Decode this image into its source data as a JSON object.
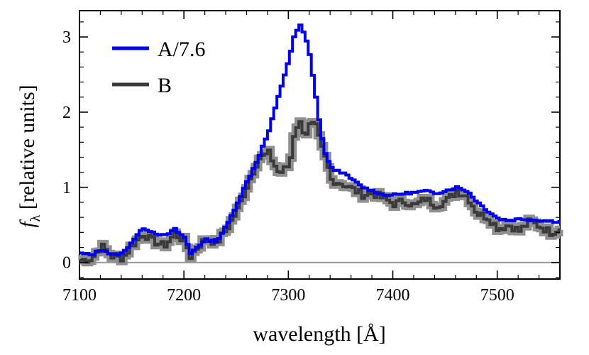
{
  "chart_data": {
    "type": "line",
    "xlabel": "wavelength [Å]",
    "ylabel_italic": "f",
    "ylabel_subscript": "λ",
    "ylabel_rest": " [relative units]",
    "xlim": [
      7100,
      7560
    ],
    "ylim": [
      -0.22,
      3.35
    ],
    "xticks": [
      7100,
      7200,
      7300,
      7400,
      7500
    ],
    "xtick_labels": [
      "7100",
      "7200",
      "7300",
      "7400",
      "7500"
    ],
    "yticks": [
      0,
      1,
      2,
      3
    ],
    "ytick_labels": [
      "0",
      "1",
      "2",
      "3"
    ],
    "zero_line": 0,
    "legend": {
      "position": "top-left",
      "entries": [
        "A/7.6",
        "B"
      ]
    },
    "series": [
      {
        "name": "A/7.6",
        "color": "#0000ee",
        "step": true,
        "points": [
          [
            7100,
            0.12
          ],
          [
            7110,
            0.1
          ],
          [
            7120,
            0.18
          ],
          [
            7130,
            0.1
          ],
          [
            7140,
            0.12
          ],
          [
            7150,
            0.3
          ],
          [
            7160,
            0.46
          ],
          [
            7170,
            0.4
          ],
          [
            7180,
            0.35
          ],
          [
            7190,
            0.44
          ],
          [
            7200,
            0.32
          ],
          [
            7205,
            0.12
          ],
          [
            7210,
            0.2
          ],
          [
            7220,
            0.3
          ],
          [
            7230,
            0.28
          ],
          [
            7240,
            0.5
          ],
          [
            7250,
            0.8
          ],
          [
            7260,
            1.1
          ],
          [
            7270,
            1.4
          ],
          [
            7280,
            1.75
          ],
          [
            7290,
            2.25
          ],
          [
            7300,
            2.75
          ],
          [
            7305,
            3.05
          ],
          [
            7310,
            3.15
          ],
          [
            7315,
            3.0
          ],
          [
            7320,
            2.7
          ],
          [
            7325,
            2.2
          ],
          [
            7330,
            1.7
          ],
          [
            7335,
            1.4
          ],
          [
            7340,
            1.25
          ],
          [
            7350,
            1.2
          ],
          [
            7360,
            1.1
          ],
          [
            7370,
            1.0
          ],
          [
            7380,
            0.95
          ],
          [
            7390,
            0.9
          ],
          [
            7400,
            0.9
          ],
          [
            7410,
            0.92
          ],
          [
            7420,
            0.93
          ],
          [
            7430,
            0.95
          ],
          [
            7440,
            0.92
          ],
          [
            7450,
            0.96
          ],
          [
            7460,
            1.0
          ],
          [
            7470,
            0.95
          ],
          [
            7480,
            0.8
          ],
          [
            7490,
            0.68
          ],
          [
            7500,
            0.58
          ],
          [
            7510,
            0.56
          ],
          [
            7520,
            0.58
          ],
          [
            7530,
            0.57
          ],
          [
            7540,
            0.56
          ],
          [
            7550,
            0.55
          ],
          [
            7560,
            0.54
          ]
        ]
      },
      {
        "name": "B",
        "color": "#3a3a3a",
        "band_color": "#909090",
        "step": true,
        "points": [
          [
            7100,
            0.03
          ],
          [
            7110,
            0.05
          ],
          [
            7120,
            0.22
          ],
          [
            7130,
            0.08
          ],
          [
            7140,
            0.06
          ],
          [
            7150,
            0.24
          ],
          [
            7160,
            0.38
          ],
          [
            7170,
            0.28
          ],
          [
            7180,
            0.22
          ],
          [
            7190,
            0.38
          ],
          [
            7200,
            0.28
          ],
          [
            7205,
            0.08
          ],
          [
            7210,
            0.18
          ],
          [
            7220,
            0.32
          ],
          [
            7230,
            0.26
          ],
          [
            7240,
            0.45
          ],
          [
            7250,
            0.7
          ],
          [
            7260,
            1.05
          ],
          [
            7270,
            1.38
          ],
          [
            7280,
            1.45
          ],
          [
            7290,
            1.18
          ],
          [
            7300,
            1.3
          ],
          [
            7305,
            1.8
          ],
          [
            7310,
            1.85
          ],
          [
            7315,
            1.7
          ],
          [
            7320,
            1.85
          ],
          [
            7325,
            1.8
          ],
          [
            7330,
            1.55
          ],
          [
            7335,
            1.35
          ],
          [
            7340,
            1.1
          ],
          [
            7350,
            1.05
          ],
          [
            7360,
            0.98
          ],
          [
            7370,
            0.9
          ],
          [
            7380,
            0.92
          ],
          [
            7390,
            0.85
          ],
          [
            7400,
            0.78
          ],
          [
            7410,
            0.82
          ],
          [
            7420,
            0.75
          ],
          [
            7430,
            0.85
          ],
          [
            7440,
            0.76
          ],
          [
            7450,
            0.82
          ],
          [
            7460,
            0.95
          ],
          [
            7470,
            0.88
          ],
          [
            7480,
            0.65
          ],
          [
            7490,
            0.6
          ],
          [
            7500,
            0.45
          ],
          [
            7510,
            0.5
          ],
          [
            7520,
            0.42
          ],
          [
            7530,
            0.55
          ],
          [
            7540,
            0.48
          ],
          [
            7550,
            0.4
          ],
          [
            7560,
            0.46
          ]
        ]
      }
    ]
  }
}
